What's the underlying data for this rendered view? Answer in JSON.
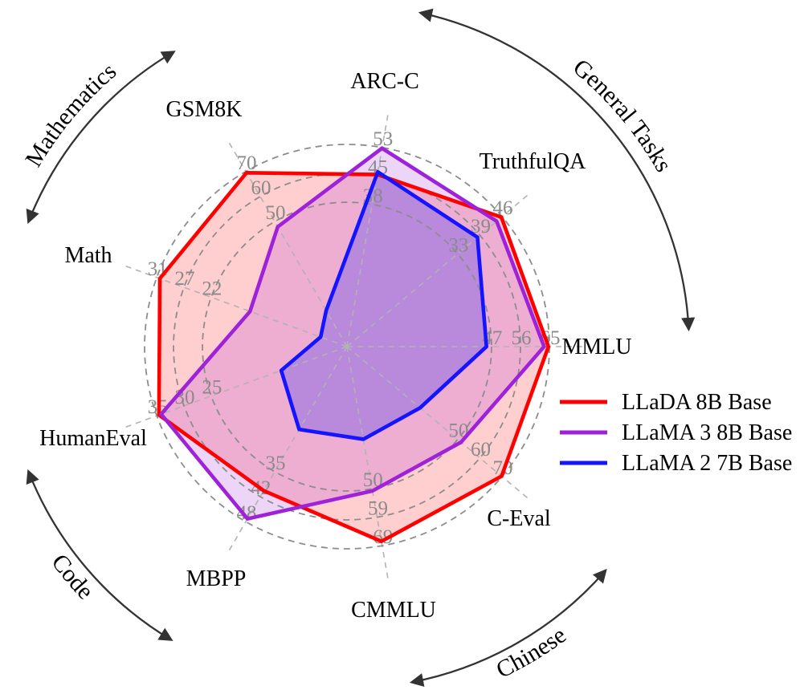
{
  "chart_data": {
    "type": "radar",
    "title": "",
    "axes": [
      {
        "label": "ARC-C",
        "ticks": [
          38,
          45,
          53
        ],
        "max": 53
      },
      {
        "label": "TruthfulQA",
        "ticks": [
          33,
          39,
          46
        ],
        "max": 46
      },
      {
        "label": "MMLU",
        "ticks": [
          47,
          56,
          65
        ],
        "max": 65
      },
      {
        "label": "C-Eval",
        "ticks": [
          50,
          60,
          70
        ],
        "max": 70
      },
      {
        "label": "CMMLU",
        "ticks": [
          50,
          59,
          69
        ],
        "max": 69
      },
      {
        "label": "MBPP",
        "ticks": [
          35,
          42,
          48
        ],
        "max": 48
      },
      {
        "label": "HumanEval",
        "ticks": [
          25,
          30,
          35
        ],
        "max": 35
      },
      {
        "label": "Math",
        "ticks": [
          22,
          27,
          31
        ],
        "max": 31
      },
      {
        "label": "GSM8K",
        "ticks": [
          50,
          60,
          70
        ],
        "max": 70
      }
    ],
    "series": [
      {
        "name": "LLaDA 8B Base",
        "color": "#ff0000",
        "fill_opacity": 0.19,
        "values": [
          45.8,
          45.8,
          64.7,
          69.8,
          67.5,
          39.5,
          34.6,
          30.5,
          69.5
        ]
      },
      {
        "name": "LLaMA 3 8B Base",
        "color": "#9e22d9",
        "fill_opacity": 0.19,
        "values": [
          52.8,
          44.4,
          63.3,
          51.5,
          50.0,
          47.2,
          34.2,
          15.8,
          47.9
        ]
      },
      {
        "name": "LLaMA 2 7B Base",
        "color": "#1414ff",
        "fill_opacity": 0.24,
        "values": [
          46.5,
          38.7,
          44.8,
          33.0,
          32.1,
          22.7,
          12.1,
          4.3,
          14.4
        ]
      }
    ],
    "groups": [
      {
        "label": "General Tasks"
      },
      {
        "label": "Mathematics"
      },
      {
        "label": "Code"
      },
      {
        "label": "Chinese"
      }
    ],
    "legend_position": "right",
    "grid": true,
    "ring_fractions": [
      0.714,
      0.857,
      1.0
    ],
    "colors": {
      "ring": "#8d8d8d",
      "radial": "#b3b3b3",
      "tick_text": "#8a8a8a",
      "axis_text": "#000000",
      "group_arc": "#333333"
    }
  }
}
